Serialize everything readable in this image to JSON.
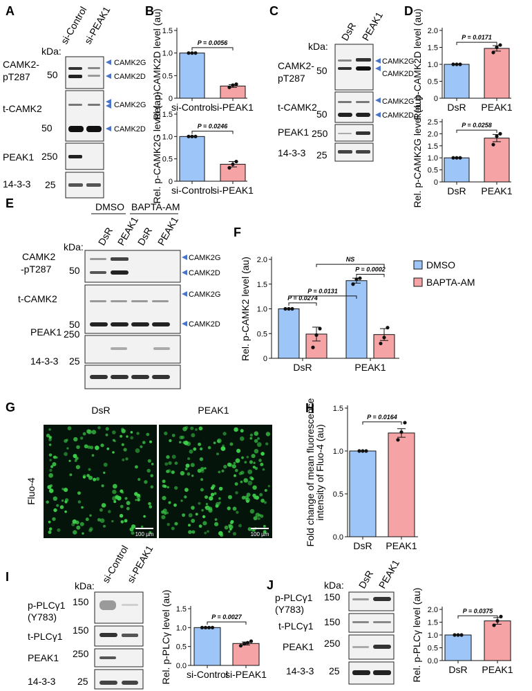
{
  "panels": {
    "A": "A",
    "B": "B",
    "C": "C",
    "D": "D",
    "E": "E",
    "F": "F",
    "G": "G",
    "H": "H",
    "I": "I",
    "J": "J"
  },
  "common": {
    "kda": "kDa:",
    "m50": "50",
    "m250": "250",
    "m25": "25",
    "m150": "150",
    "camk2g": "CAMK2G",
    "camk2d": "CAMK2D",
    "pt287_1": "CAMK2-",
    "pt287_2": "pT287",
    "pt287e_1": "CAMK2",
    "pt287e_2": "-pT287",
    "tcamk2": "t-CAMK2",
    "peak1": "PEAK1",
    "p1433": "14-3-3",
    "sicontrol": "si-Control",
    "sipeak1": "si-PEAK1",
    "dsr": "DsR",
    "dmso": "DMSO",
    "bapta": "BAPTA-AM",
    "pplc_1": "p-PLCγ1",
    "pplc_2": "(Y783)",
    "tplc": "t-PLCγ1",
    "fluo4": "Fluo-4",
    "scale": "100 µm",
    "ns": "NS"
  },
  "colors": {
    "control": "#9ec5f8",
    "treated": "#f6a3a6",
    "band": "#1a1a1a",
    "arrow": "#4a74c9",
    "micro_bg": "#04140a",
    "cell": "#3ed24a"
  },
  "chart_data": [
    {
      "id": "B1",
      "type": "bar",
      "categories": [
        "si-Control",
        "si-PEAK1"
      ],
      "values": [
        1.0,
        0.27
      ],
      "errors": [
        0.0,
        0.03
      ],
      "points": [
        [
          1.0,
          1.0,
          1.0
        ],
        [
          0.24,
          0.29,
          0.31
        ]
      ],
      "ylabel": "Rel. p-CAMK2D level (au)",
      "ylim": [
        0,
        1.5
      ],
      "yticks": [
        "0",
        "0.5",
        "1.0",
        "1.5"
      ],
      "pvalues": [
        {
          "text": "P = 0.0056"
        }
      ]
    },
    {
      "id": "B2",
      "type": "bar",
      "categories": [
        "si-Control",
        "si-PEAK1"
      ],
      "values": [
        1.0,
        0.38
      ],
      "errors": [
        0.0,
        0.06
      ],
      "points": [
        [
          1.0,
          1.0,
          1.0
        ],
        [
          0.3,
          0.38,
          0.44
        ]
      ],
      "ylabel": "Rel. p-CAMK2G level (au)",
      "ylim": [
        0,
        1.5
      ],
      "yticks": [
        "0",
        "0.5",
        "1.0",
        "1.5"
      ],
      "pvalues": [
        {
          "text": "P = 0.0246"
        }
      ]
    },
    {
      "id": "D1",
      "type": "bar",
      "categories": [
        "DsR",
        "PEAK1"
      ],
      "values": [
        1.0,
        1.47
      ],
      "errors": [
        0.0,
        0.08
      ],
      "points": [
        [
          1.0,
          1.0,
          1.0
        ],
        [
          1.35,
          1.5,
          1.57
        ]
      ],
      "ylabel": "Rel. p-CAMK2D level (au)",
      "ylim": [
        0,
        2.0
      ],
      "yticks": [
        "0",
        "0.5",
        "1.0",
        "1.5",
        "2.0"
      ],
      "pvalues": [
        {
          "text": "P = 0.0171"
        }
      ]
    },
    {
      "id": "D2",
      "type": "bar",
      "categories": [
        "DsR",
        "PEAK1"
      ],
      "values": [
        1.0,
        1.82
      ],
      "errors": [
        0.0,
        0.15
      ],
      "points": [
        [
          1.0,
          1.0,
          1.0
        ],
        [
          1.55,
          1.9,
          2.0
        ]
      ],
      "ylabel": "Rel. p-CAMK2G level (au)",
      "ylim": [
        0,
        2.5
      ],
      "yticks": [
        "0",
        "0.5",
        "1.0",
        "1.5",
        "2.0",
        "2.5"
      ],
      "pvalues": [
        {
          "text": "P = 0.0258"
        }
      ]
    },
    {
      "id": "F",
      "type": "bar",
      "categories": [
        "DsR",
        "PEAK1"
      ],
      "series": [
        {
          "name": "DMSO",
          "values": [
            1.0,
            1.57
          ],
          "errors": [
            0.0,
            0.05
          ],
          "points": [
            [
              1.0,
              1.0,
              1.0
            ],
            [
              1.5,
              1.6,
              1.62
            ]
          ]
        },
        {
          "name": "BAPTA-AM",
          "values": [
            0.49,
            0.48
          ],
          "errors": [
            0.14,
            0.12
          ],
          "points": [
            [
              0.22,
              0.47,
              0.6
            ],
            [
              0.3,
              0.42,
              0.62
            ]
          ]
        }
      ],
      "ylabel": "Rel. p-CAMK2 level (au)",
      "ylim": [
        0,
        2.0
      ],
      "yticks": [
        "0",
        "0.5",
        "1.0",
        "1.5",
        "2.0"
      ],
      "pvalues": [
        {
          "text": "P = 0.0274"
        },
        {
          "text": "P = 0.0131"
        },
        {
          "text": "P = 0.0002"
        },
        {
          "text": "NS"
        }
      ],
      "legend": "right"
    },
    {
      "id": "H",
      "type": "bar",
      "categories": [
        "DsR",
        "PEAK1"
      ],
      "values": [
        1.0,
        1.21
      ],
      "errors": [
        0.0,
        0.05
      ],
      "points": [
        [
          1.0,
          1.0,
          1.0
        ],
        [
          1.13,
          1.22,
          1.33
        ]
      ],
      "ylabel": "Fold change of mean fluorescence intensity of Fluo-4 (au)",
      "ylabel_1": "Fold change of mean fluorescence",
      "ylabel_2": "intensity of Fluo-4 (au)",
      "ylim": [
        0,
        1.5
      ],
      "yticks": [
        "0.0",
        "0.5",
        "1.0",
        "1.5"
      ],
      "pvalues": [
        {
          "text": "P = 0.0164"
        }
      ]
    },
    {
      "id": "I",
      "type": "bar",
      "categories": [
        "si-Control",
        "si-PEAK1"
      ],
      "values": [
        1.0,
        0.58
      ],
      "errors": [
        0.0,
        0.04
      ],
      "points": [
        [
          1.0,
          1.0,
          1.0,
          1.0
        ],
        [
          0.52,
          0.57,
          0.6,
          0.64
        ]
      ],
      "ylabel": "Rel. p-PLCγ level (au)",
      "ylim": [
        0,
        1.5
      ],
      "yticks": [
        "0.0",
        "0.5",
        "1.0",
        "1.5"
      ],
      "pvalues": [
        {
          "text": "P = 0.0027"
        }
      ]
    },
    {
      "id": "J",
      "type": "bar",
      "categories": [
        "DsR",
        "PEAK1"
      ],
      "values": [
        1.0,
        1.55
      ],
      "errors": [
        0.0,
        0.13
      ],
      "points": [
        [
          1.0,
          1.0,
          1.0
        ],
        [
          1.38,
          1.55,
          1.72
        ]
      ],
      "ylabel": "Rel. p-PLCγ level (au)",
      "ylim": [
        0,
        2.0
      ],
      "yticks": [
        "0.0",
        "0.5",
        "1.0",
        "1.5",
        "2.0"
      ],
      "pvalues": [
        {
          "text": "P = 0.0375"
        }
      ]
    }
  ]
}
